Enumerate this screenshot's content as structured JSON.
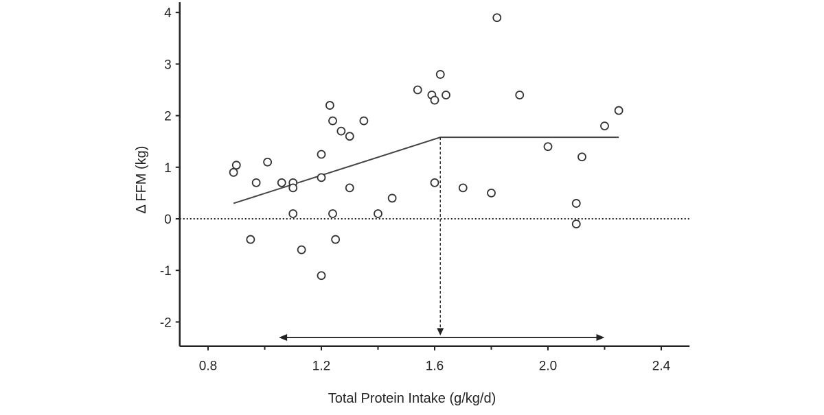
{
  "chart_data": {
    "type": "scatter",
    "title": "",
    "xlabel": "Total Protein Intake (g/kg/d)",
    "ylabel": "Δ FFM (kg)",
    "xlim": [
      0.7,
      2.5
    ],
    "ylim": [
      -2.47,
      4.2
    ],
    "xticks": [
      0.8,
      1.2,
      1.6,
      2.0,
      2.4
    ],
    "xtick_labels": [
      "0.8",
      "1.2",
      "1.6",
      "2.0",
      "2.4"
    ],
    "xminor_ticks": [
      1.0,
      1.4,
      1.8,
      2.2
    ],
    "yticks": [
      -2,
      -1,
      0,
      1,
      2,
      3,
      4
    ],
    "ytick_labels": [
      "-2",
      "-1",
      "0",
      "1",
      "2",
      "3",
      "4"
    ],
    "grid": false,
    "marker": "open-circle",
    "points": [
      [
        0.89,
        0.9
      ],
      [
        0.9,
        1.04
      ],
      [
        0.95,
        -0.4
      ],
      [
        0.97,
        0.7
      ],
      [
        1.01,
        1.1
      ],
      [
        1.06,
        0.7
      ],
      [
        1.1,
        0.7
      ],
      [
        1.1,
        0.6
      ],
      [
        1.1,
        0.1
      ],
      [
        1.13,
        -0.6
      ],
      [
        1.2,
        -1.1
      ],
      [
        1.2,
        1.25
      ],
      [
        1.2,
        0.8
      ],
      [
        1.23,
        2.2
      ],
      [
        1.24,
        1.9
      ],
      [
        1.24,
        0.1
      ],
      [
        1.25,
        -0.4
      ],
      [
        1.27,
        1.7
      ],
      [
        1.3,
        1.6
      ],
      [
        1.3,
        0.6
      ],
      [
        1.35,
        1.9
      ],
      [
        1.4,
        0.1
      ],
      [
        1.45,
        0.4
      ],
      [
        1.54,
        2.5
      ],
      [
        1.59,
        2.4
      ],
      [
        1.6,
        2.3
      ],
      [
        1.6,
        0.7
      ],
      [
        1.62,
        2.8
      ],
      [
        1.64,
        2.4
      ],
      [
        1.7,
        0.6
      ],
      [
        1.8,
        0.5
      ],
      [
        1.82,
        3.9
      ],
      [
        1.9,
        2.4
      ],
      [
        2.0,
        1.4
      ],
      [
        2.1,
        0.3
      ],
      [
        2.1,
        -0.1
      ],
      [
        2.12,
        1.2
      ],
      [
        2.2,
        1.8
      ],
      [
        2.25,
        2.1
      ]
    ],
    "fit_line": [
      [
        0.89,
        0.3
      ],
      [
        1.62,
        1.58
      ],
      [
        2.25,
        1.58
      ]
    ],
    "reference_line_y": 0,
    "breakpoint_x": 1.62,
    "range_arrow": {
      "x": [
        1.05,
        2.2
      ],
      "y": -2.3
    }
  }
}
